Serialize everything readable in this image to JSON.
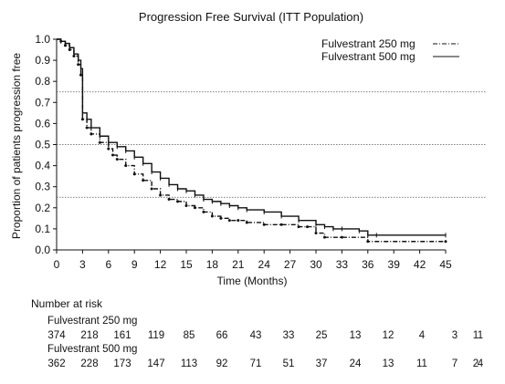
{
  "chart_data": {
    "type": "line",
    "title": "Progression Free Survival (ITT Population)",
    "xlabel": "Time (Months)",
    "ylabel": "Proportion of patients progression free",
    "xlim": [
      0,
      45
    ],
    "ylim": [
      0,
      1.0
    ],
    "xticks": [
      "0",
      "3",
      "6",
      "9",
      "12",
      "15",
      "18",
      "21",
      "24",
      "27",
      "30",
      "33",
      "36",
      "39",
      "42",
      "45"
    ],
    "yticks": [
      "0.0",
      "0.1",
      "0.2",
      "0.3",
      "0.4",
      "0.5",
      "0.6",
      "0.7",
      "0.8",
      "0.9",
      "1.0"
    ],
    "reference_lines_y": [
      0.25,
      0.5,
      0.75
    ],
    "legend_position": "top-right",
    "series": [
      {
        "name": "Fulvestrant 250 mg",
        "style": "dash-dot",
        "x": [
          0,
          0.5,
          1,
          1.5,
          2,
          2.5,
          2.8,
          3,
          3.5,
          4,
          5,
          6,
          6.5,
          7,
          8,
          9,
          10,
          11,
          12,
          13,
          14,
          15,
          16,
          17,
          18,
          19,
          20,
          21,
          22,
          24,
          26,
          28,
          29,
          30,
          31,
          33,
          36,
          45
        ],
        "y": [
          1.0,
          0.99,
          0.97,
          0.95,
          0.92,
          0.88,
          0.83,
          0.62,
          0.58,
          0.55,
          0.51,
          0.48,
          0.45,
          0.43,
          0.4,
          0.36,
          0.33,
          0.29,
          0.26,
          0.24,
          0.23,
          0.21,
          0.2,
          0.18,
          0.16,
          0.15,
          0.14,
          0.14,
          0.13,
          0.12,
          0.12,
          0.11,
          0.11,
          0.08,
          0.06,
          0.06,
          0.04,
          0.04
        ]
      },
      {
        "name": "Fulvestrant 500 mg",
        "style": "solid",
        "x": [
          0,
          0.5,
          1,
          1.5,
          2,
          2.5,
          2.8,
          3,
          3.5,
          4,
          5,
          6,
          7,
          8,
          9,
          10,
          11,
          12,
          13,
          14,
          15,
          16,
          17,
          18,
          19,
          20,
          21,
          22,
          24,
          26,
          28,
          30,
          31,
          32,
          33,
          35,
          36,
          37,
          45
        ],
        "y": [
          1.0,
          0.99,
          0.98,
          0.96,
          0.93,
          0.9,
          0.86,
          0.65,
          0.62,
          0.58,
          0.54,
          0.51,
          0.49,
          0.47,
          0.44,
          0.41,
          0.37,
          0.34,
          0.31,
          0.29,
          0.28,
          0.26,
          0.24,
          0.23,
          0.22,
          0.21,
          0.2,
          0.19,
          0.18,
          0.16,
          0.14,
          0.12,
          0.11,
          0.1,
          0.1,
          0.09,
          0.07,
          0.07,
          0.07
        ]
      }
    ],
    "risk_table": {
      "title": "Number at risk",
      "rows": [
        {
          "name": "Fulvestrant 250 mg",
          "values": [
            "374",
            "218",
            "161",
            "119",
            "85",
            "66",
            "43",
            "33",
            "25",
            "13",
            "12",
            "4",
            "3",
            "1",
            "1"
          ]
        },
        {
          "name": "Fulvestrant 500 mg",
          "values": [
            "362",
            "228",
            "173",
            "147",
            "113",
            "92",
            "71",
            "51",
            "37",
            "24",
            "13",
            "11",
            "7",
            "4",
            "2"
          ]
        }
      ]
    }
  },
  "colors": {
    "line": "#111111",
    "reference": "#555555"
  }
}
